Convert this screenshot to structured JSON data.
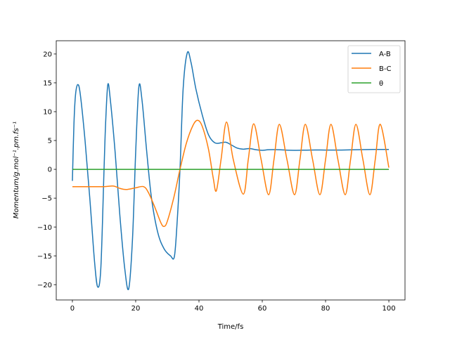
{
  "chart_data": {
    "type": "line",
    "title": "",
    "xlabel": "Time/fs",
    "ylabel": "Momentum/g.mol⁻¹.pm.fs⁻¹",
    "xlim": [
      -5.1,
      105.1
    ],
    "ylim": [
      -22.65,
      22.3
    ],
    "xticks": [
      0,
      20,
      40,
      60,
      80,
      100
    ],
    "yticks": [
      -20,
      -15,
      -10,
      -5,
      0,
      5,
      10,
      15,
      20
    ],
    "xtick_labels": [
      "0",
      "20",
      "40",
      "60",
      "80",
      "100"
    ],
    "ytick_labels": [
      "−20",
      "−15",
      "−10",
      "−5",
      "0",
      "5",
      "10",
      "15",
      "20"
    ],
    "grid": false,
    "legend_placement": "upper right",
    "series": [
      {
        "name": "A-B",
        "color": "#1f77b4",
        "x": [
          0,
          0.5,
          1,
          1.7,
          2.5,
          4,
          5.5,
          7,
          8,
          9,
          10,
          10.5,
          11.2,
          12,
          13.5,
          15,
          16.5,
          17.8,
          19,
          20,
          21,
          22,
          23.5,
          25,
          27,
          29,
          31,
          32.2,
          33,
          34,
          35,
          36.3,
          37.5,
          39,
          41,
          43,
          45,
          47,
          48.5,
          50,
          52,
          54,
          56,
          58,
          60,
          62,
          65,
          70,
          75,
          80,
          85,
          90,
          95,
          100
        ],
        "y": [
          -2,
          8,
          13,
          14.7,
          13,
          5,
          -5,
          -16,
          -20.4,
          -17,
          0,
          8,
          14.7,
          12,
          3,
          -8,
          -17,
          -20.7,
          -12,
          3,
          14.3,
          12,
          3,
          -5,
          -11,
          -13.8,
          -15,
          -15.2,
          -10,
          0,
          14,
          20.2,
          18.5,
          14,
          9.5,
          6,
          4.6,
          4.6,
          4.7,
          4.3,
          3.7,
          3.5,
          3.6,
          3.4,
          3.3,
          3.4,
          3.4,
          3.3,
          3.35,
          3.35,
          3.35,
          3.4,
          3.45,
          3.45
        ]
      },
      {
        "name": "B-C",
        "color": "#ff7f0e",
        "x": [
          0,
          5,
          10,
          13,
          15,
          17,
          20,
          22.5,
          24,
          26,
          28,
          29,
          30,
          32,
          34,
          36,
          38,
          39.5,
          41,
          43,
          44.5,
          45.5,
          47,
          48.7,
          50.8,
          54,
          55.6,
          57.3,
          59.6,
          62,
          63.7,
          65.4,
          67.8,
          70.2,
          71.9,
          73.6,
          75.9,
          78.2,
          80,
          81.7,
          83.9,
          86.2,
          87.9,
          89.6,
          91.8,
          94,
          95.7,
          97.3,
          100
        ],
        "y": [
          -3,
          -3,
          -3,
          -2.9,
          -3.3,
          -3.5,
          -3.2,
          -3,
          -4,
          -6.5,
          -9.3,
          -9.9,
          -9,
          -5,
          0,
          4.5,
          7.5,
          8.5,
          7.5,
          3.5,
          -1.5,
          -3.7,
          1.8,
          8.2,
          1.8,
          -4.3,
          1.8,
          7.9,
          1.8,
          -4.4,
          1.7,
          7.8,
          1.7,
          -4.4,
          1.7,
          7.8,
          1.7,
          -4.4,
          1.7,
          7.8,
          1.7,
          -4.4,
          1.7,
          7.8,
          1.7,
          -4.4,
          1.7,
          7.8,
          0.3
        ]
      },
      {
        "name": "θ",
        "color": "#2ca02c",
        "x": [
          0,
          100
        ],
        "y": [
          0,
          0
        ]
      }
    ]
  }
}
